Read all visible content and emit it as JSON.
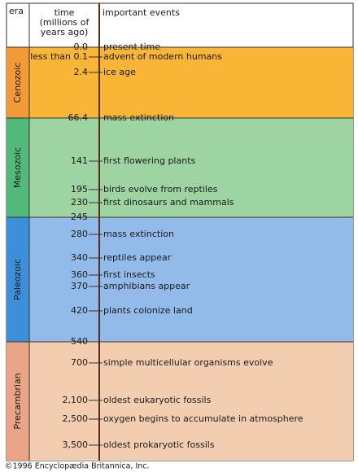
{
  "header": {
    "era": "era",
    "time_lines": [
      "time",
      "(millions of",
      "years ago)"
    ],
    "events": "important events"
  },
  "eras": [
    {
      "name": "Cenozoic"
    },
    {
      "name": "Mesozoic"
    },
    {
      "name": "Paleozoic"
    },
    {
      "name": "Precambrian"
    }
  ],
  "timeline": [
    {
      "time": "0.0",
      "event": "present time"
    },
    {
      "time": "less than 0.1",
      "event": "advent of modern humans"
    },
    {
      "time": "2.4",
      "event": "ice age"
    },
    {
      "time": "66.4",
      "event": "mass extinction"
    },
    {
      "time": "141",
      "event": "first flowering plants"
    },
    {
      "time": "195",
      "event": "birds evolve from reptiles"
    },
    {
      "time": "230",
      "event": "first dinosaurs and mammals"
    },
    {
      "time": "245"
    },
    {
      "time": "280",
      "event": "mass extinction"
    },
    {
      "time": "340",
      "event": "reptiles appear"
    },
    {
      "time": "360",
      "event": "first insects"
    },
    {
      "time": "370",
      "event": "amphibians appear"
    },
    {
      "time": "420",
      "event": "plants colonize land"
    },
    {
      "time": "540"
    },
    {
      "time": "700",
      "event": "simple multicellular organisms evolve"
    },
    {
      "time": "2,100",
      "event": "oldest eukaryotic fossils"
    },
    {
      "time": "2,500",
      "event": "oxygen begins to accumulate in atmosphere"
    },
    {
      "time": "3,500",
      "event": "oldest prokaryotic fossils"
    }
  ],
  "footer": "©1996 Encyclopædia Britannica, Inc."
}
